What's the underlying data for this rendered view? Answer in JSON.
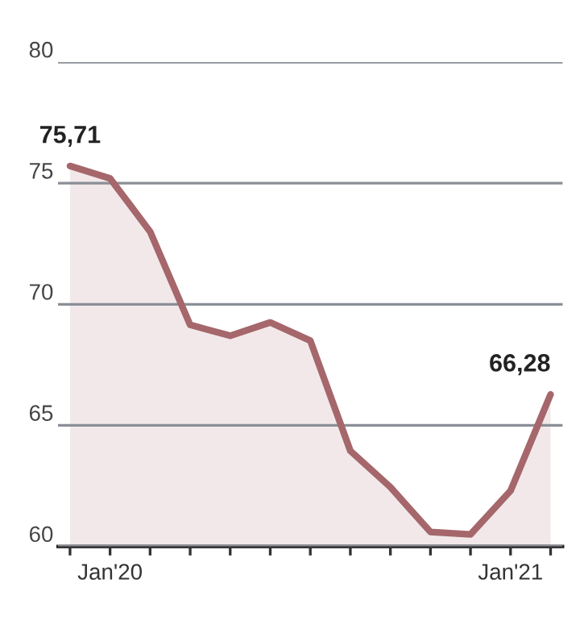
{
  "chart_data": {
    "type": "area",
    "categories": [
      null,
      "Jan'20",
      null,
      null,
      null,
      null,
      null,
      null,
      null,
      null,
      null,
      "Jan'21",
      null
    ],
    "series": [
      {
        "color": "#a5676b",
        "values": [
          75.71,
          75.2,
          73.0,
          69.15,
          68.7,
          69.25,
          68.5,
          63.95,
          62.45,
          60.6,
          60.5,
          62.3,
          66.28
        ],
        "value_labels": [
          "75,71",
          null,
          null,
          null,
          null,
          null,
          null,
          null,
          null,
          null,
          null,
          null,
          "66,28"
        ]
      }
    ],
    "ylim": [
      60,
      80
    ],
    "yticks": [
      60,
      65,
      70,
      75,
      80
    ],
    "grid": "y",
    "legend": false
  }
}
